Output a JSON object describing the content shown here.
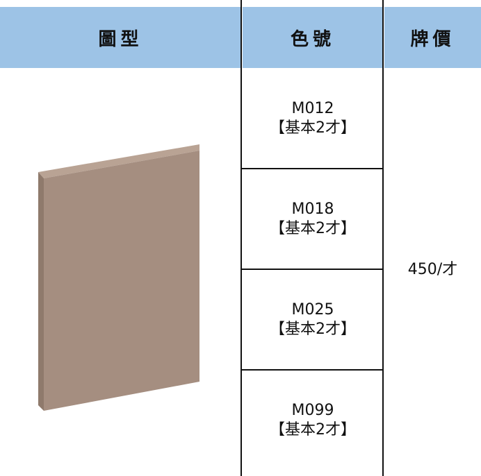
{
  "table": {
    "headers": [
      "圖型",
      "色號",
      "牌價"
    ],
    "rows": [
      {
        "code": "M012",
        "spec": "【基本2才】"
      },
      {
        "code": "M018",
        "spec": "【基本2才】"
      },
      {
        "code": "M025",
        "spec": "【基本2才】"
      },
      {
        "code": "M099",
        "spec": "【基本2才】"
      }
    ],
    "price": "450/才"
  }
}
